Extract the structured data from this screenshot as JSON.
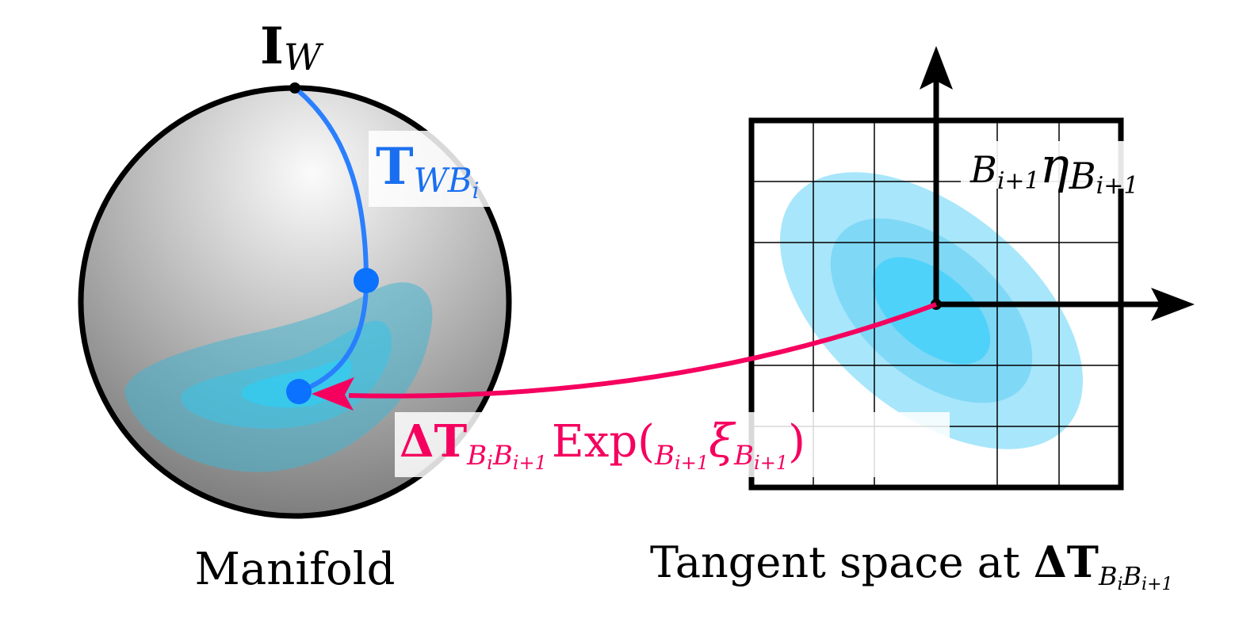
{
  "colors": {
    "curve": "#2a7fff",
    "point": "#0a72ff",
    "exp_arrow": "#f5005f",
    "contour_outer": "#a8e6fb",
    "contour_mid": "#7fd8f6",
    "contour_inner": "#4fd2f9",
    "sphere_light": "#fafafa",
    "sphere_dark": "#7a7a7a",
    "line": "#000000"
  },
  "manifold": {
    "caption": "Manifold",
    "identity_label": {
      "main": "I",
      "sub": "W"
    },
    "pose_label": {
      "main": "T",
      "sub": "WB",
      "subsub": "i"
    }
  },
  "tangent": {
    "caption_text": "Tangent space at ",
    "caption_symbol": {
      "main": "ΔT",
      "sub1": "B",
      "sub1sub": "i",
      "sub2": "B",
      "sub2sub": "i+1"
    },
    "eta_label": {
      "pre": "B",
      "pre_sub": "i+1",
      "symbol": "η",
      "post": "B",
      "post_sub": "i+1"
    }
  },
  "exp_label": {
    "delta_main": "ΔT",
    "delta_sub1": "B",
    "delta_sub1sub": "i",
    "delta_sub2": "B",
    "delta_sub2sub": "i+1",
    "func": "Exp(",
    "pre": "B",
    "pre_sub": "i+1",
    "symbol": "ξ",
    "post": "B",
    "post_sub": "i+1",
    "close": ")"
  }
}
